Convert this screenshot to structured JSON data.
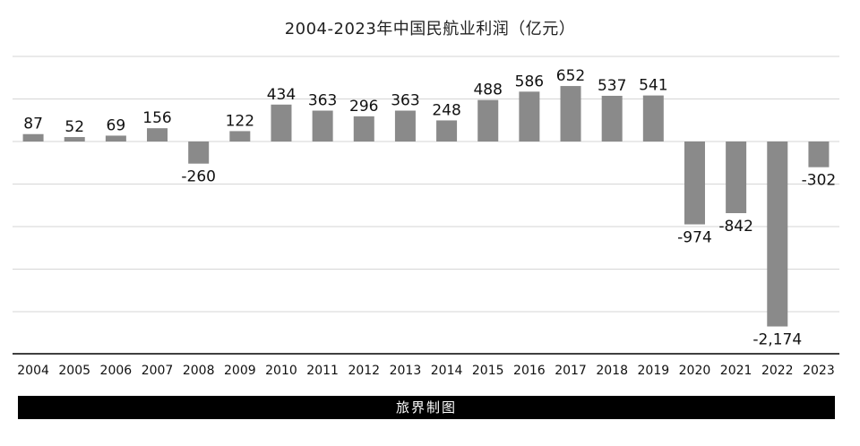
{
  "chart_data": {
    "type": "bar",
    "title": "2004-2023年中国民航业利润（亿元）",
    "xlabel": "",
    "ylabel": "",
    "categories": [
      "2004",
      "2005",
      "2006",
      "2007",
      "2008",
      "2009",
      "2010",
      "2011",
      "2012",
      "2013",
      "2014",
      "2015",
      "2016",
      "2017",
      "2018",
      "2019",
      "2020",
      "2021",
      "2022",
      "2023"
    ],
    "values": [
      87,
      52,
      69,
      156,
      -260,
      122,
      434,
      363,
      296,
      363,
      248,
      488,
      586,
      652,
      537,
      541,
      -974,
      -842,
      -2174,
      -302
    ],
    "value_labels": [
      "87",
      "52",
      "69",
      "156",
      "-260",
      "122",
      "434",
      "363",
      "296",
      "363",
      "248",
      "488",
      "586",
      "652",
      "537",
      "541",
      "-974",
      "-842",
      "-2,174",
      "-302"
    ],
    "ylim": [
      -2500,
      1000
    ],
    "grid": true,
    "gridline_step": 500,
    "bar_color": "#8a8a8a"
  },
  "footer": {
    "credit": "旅界制图"
  }
}
